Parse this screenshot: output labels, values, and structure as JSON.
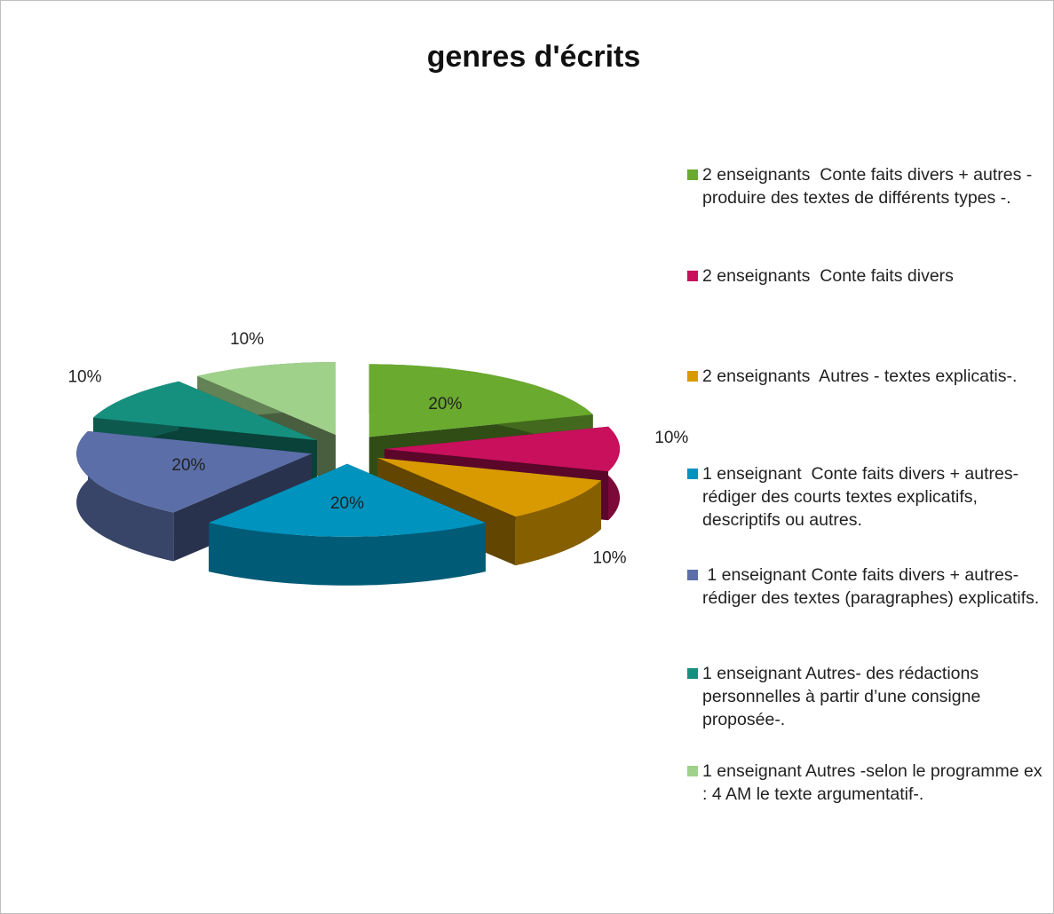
{
  "chart_data": {
    "type": "pie",
    "title": "genres d'écrits",
    "categories": [
      "2 enseignants  Conte faits divers + autres -produire des textes de différents types -.",
      "2 enseignants  Conte faits divers",
      "2 enseignants  Autres - textes explicatis-.",
      "1 enseignant  Conte faits divers + autres-rédiger des courts textes explicatifs, descriptifs ou autres.",
      " 1 enseignant Conte faits divers + autres-rédiger des textes (paragraphes) explicatifs.",
      "1 enseignant Autres- des rédactions personnelles à partir d’une consigne proposée-.",
      "1 enseignant Autres -selon le programme ex : 4 AM le texte argumentatif-."
    ],
    "values": [
      20,
      10,
      10,
      20,
      20,
      10,
      10
    ],
    "value_labels": [
      "20%",
      "10%",
      "10%",
      "20%",
      "20%",
      "10%",
      "10%"
    ],
    "colors": [
      "#6aaa2e",
      "#c8105c",
      "#d89a00",
      "#0093be",
      "#5b6ea8",
      "#16907e",
      "#9fd18a"
    ],
    "legend": "right"
  }
}
